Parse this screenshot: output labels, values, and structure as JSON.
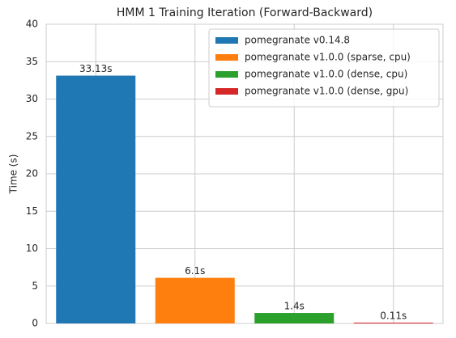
{
  "chart_data": {
    "type": "bar",
    "title": "HMM 1 Training Iteration (Forward-Backward)",
    "ylabel": "Time (s)",
    "categories": [
      null,
      null,
      null,
      null
    ],
    "series": [
      {
        "name": "pomegranate v0.14.8",
        "color": "#1f77b4",
        "values": [
          33.13,
          null,
          null,
          null
        ],
        "value_labels": [
          "33.13s",
          null,
          null,
          null
        ]
      },
      {
        "name": "pomegranate v1.0.0 (sparse, cpu)",
        "color": "#ff7f0e",
        "values": [
          null,
          6.1,
          null,
          null
        ],
        "value_labels": [
          null,
          "6.1s",
          null,
          null
        ]
      },
      {
        "name": "pomegranate v1.0.0 (dense, cpu)",
        "color": "#2ca02c",
        "values": [
          null,
          null,
          1.4,
          null
        ],
        "value_labels": [
          null,
          null,
          "1.4s",
          null
        ]
      },
      {
        "name": "pomegranate v1.0.0 (dense, gpu)",
        "color": "#d62728",
        "values": [
          null,
          null,
          null,
          0.11
        ],
        "value_labels": [
          null,
          null,
          null,
          "0.11s"
        ]
      }
    ],
    "ylim": [
      0,
      40
    ],
    "yticks": [
      0,
      5,
      10,
      15,
      20,
      25,
      30,
      35,
      40
    ],
    "grid": true,
    "legend": "upper right"
  }
}
